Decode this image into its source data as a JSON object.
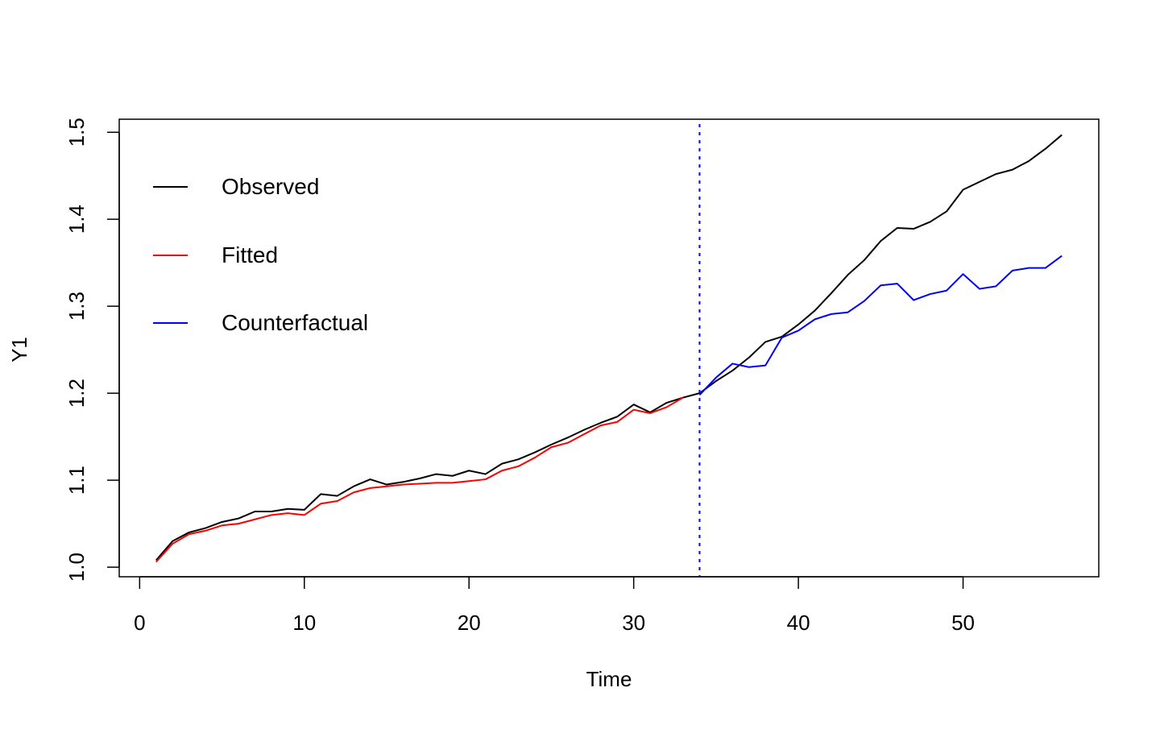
{
  "chart_data": {
    "type": "line",
    "title": "",
    "xlabel": "Time",
    "ylabel": "Y1",
    "xlim": [
      -1.24,
      58.24
    ],
    "ylim": [
      0.989,
      1.515
    ],
    "x_ticks": [
      0,
      10,
      20,
      30,
      40,
      50
    ],
    "x_tick_labels": [
      "0",
      "10",
      "20",
      "30",
      "40",
      "50"
    ],
    "y_ticks": [
      1.0,
      1.1,
      1.2,
      1.3,
      1.4,
      1.5
    ],
    "y_tick_labels": [
      "1.0",
      "1.1",
      "1.2",
      "1.3",
      "1.4",
      "1.5"
    ],
    "grid": false,
    "legend_position": "top-left",
    "intervention": {
      "x": 34,
      "color": "#0000ff",
      "style": "dotted"
    },
    "series": [
      {
        "name": "Observed",
        "color": "#000000",
        "x": [
          1,
          2,
          3,
          4,
          5,
          6,
          7,
          8,
          9,
          10,
          11,
          12,
          13,
          14,
          15,
          16,
          17,
          18,
          19,
          20,
          21,
          22,
          23,
          24,
          25,
          26,
          27,
          28,
          29,
          30,
          31,
          32,
          33,
          34,
          35,
          36,
          37,
          38,
          39,
          40,
          41,
          42,
          43,
          44,
          45,
          46,
          47,
          48,
          49,
          50,
          51,
          52,
          53,
          54,
          55,
          56
        ],
        "y": [
          1.008,
          1.03,
          1.04,
          1.045,
          1.052,
          1.056,
          1.064,
          1.064,
          1.067,
          1.066,
          1.084,
          1.082,
          1.093,
          1.101,
          1.095,
          1.098,
          1.102,
          1.107,
          1.105,
          1.111,
          1.107,
          1.119,
          1.124,
          1.132,
          1.141,
          1.149,
          1.158,
          1.166,
          1.173,
          1.187,
          1.178,
          1.189,
          1.195,
          1.2,
          1.214,
          1.226,
          1.241,
          1.259,
          1.265,
          1.279,
          1.295,
          1.315,
          1.336,
          1.353,
          1.375,
          1.39,
          1.389,
          1.397,
          1.409,
          1.434,
          1.443,
          1.452,
          1.457,
          1.467,
          1.481,
          1.497
        ]
      },
      {
        "name": "Fitted",
        "color": "#ff0000",
        "x": [
          1,
          2,
          3,
          4,
          5,
          6,
          7,
          8,
          9,
          10,
          11,
          12,
          13,
          14,
          15,
          16,
          17,
          18,
          19,
          20,
          21,
          22,
          23,
          24,
          25,
          26,
          27,
          28,
          29,
          30,
          31,
          32,
          33
        ],
        "y": [
          1.006,
          1.027,
          1.038,
          1.042,
          1.048,
          1.05,
          1.055,
          1.06,
          1.062,
          1.06,
          1.073,
          1.076,
          1.086,
          1.091,
          1.093,
          1.095,
          1.096,
          1.097,
          1.097,
          1.099,
          1.101,
          1.111,
          1.116,
          1.126,
          1.138,
          1.143,
          1.153,
          1.163,
          1.167,
          1.181,
          1.177,
          1.184,
          1.195
        ]
      },
      {
        "name": "Counterfactual",
        "color": "#0000ff",
        "x": [
          34,
          35,
          36,
          37,
          38,
          39,
          40,
          41,
          42,
          43,
          44,
          45,
          46,
          47,
          48,
          49,
          50,
          51,
          52,
          53,
          54,
          55,
          56
        ],
        "y": [
          1.198,
          1.218,
          1.234,
          1.23,
          1.232,
          1.264,
          1.272,
          1.285,
          1.291,
          1.293,
          1.306,
          1.324,
          1.326,
          1.307,
          1.314,
          1.318,
          1.337,
          1.32,
          1.323,
          1.341,
          1.344,
          1.344,
          1.358
        ]
      }
    ]
  }
}
